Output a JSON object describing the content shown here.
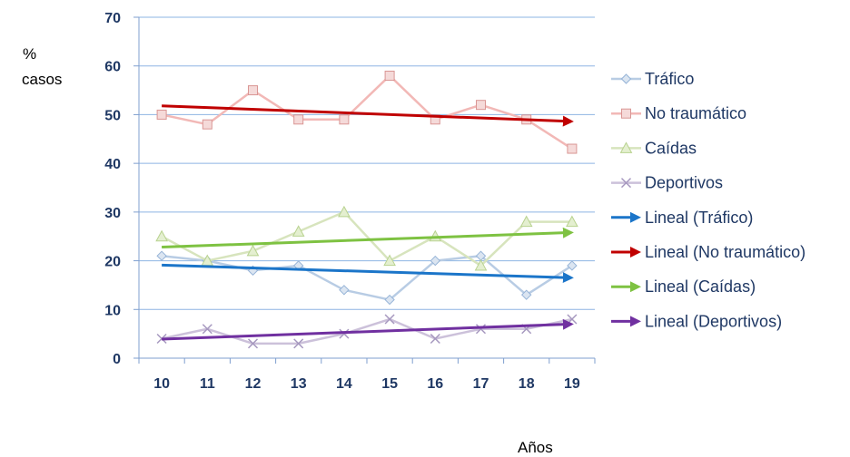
{
  "chart_data": {
    "type": "line",
    "ylabel": [
      "%",
      "casos"
    ],
    "xlabel": "Años",
    "categories": [
      "10",
      "11",
      "12",
      "13",
      "14",
      "15",
      "16",
      "17",
      "18",
      "19"
    ],
    "ylim": [
      0,
      70
    ],
    "yticks": [
      "0",
      "10",
      "20",
      "30",
      "40",
      "50",
      "60",
      "70"
    ],
    "grid": true,
    "legend_position": "right",
    "series": [
      {
        "name": "Tráfico",
        "values": [
          21,
          20,
          18,
          19,
          14,
          12,
          20,
          21,
          13,
          19
        ],
        "color": "#b8cce4",
        "marker": "diamond",
        "marker_color": "#95b3d7"
      },
      {
        "name": "No traumático",
        "values": [
          50,
          48,
          55,
          49,
          49,
          58,
          49,
          52,
          49,
          43
        ],
        "color": "#f2b8b6",
        "marker": "square",
        "marker_color": "#d99694"
      },
      {
        "name": "Caídas",
        "values": [
          25,
          20,
          22,
          26,
          30,
          20,
          25,
          19,
          28,
          28
        ],
        "color": "#d7e4bd",
        "marker": "triangle",
        "marker_color": "#b8d28f"
      },
      {
        "name": "Deportivos",
        "values": [
          4,
          6,
          3,
          3,
          5,
          8,
          4,
          6,
          6,
          8
        ],
        "color": "#ccc1da",
        "marker": "x",
        "marker_color": "#a698bf"
      }
    ],
    "trendlines": [
      {
        "name": "Lineal (Tráfico)",
        "start": 19.1,
        "end": 16.5,
        "color": "#1b75c9"
      },
      {
        "name": "Lineal (No traumático)",
        "start": 51.8,
        "end": 48.6,
        "color": "#c00000"
      },
      {
        "name": "Lineal (Caídas)",
        "start": 22.8,
        "end": 25.8,
        "color": "#7ec242"
      },
      {
        "name": "Lineal (Deportivos)",
        "start": 3.9,
        "end": 7.0,
        "color": "#7030a0"
      }
    ]
  }
}
